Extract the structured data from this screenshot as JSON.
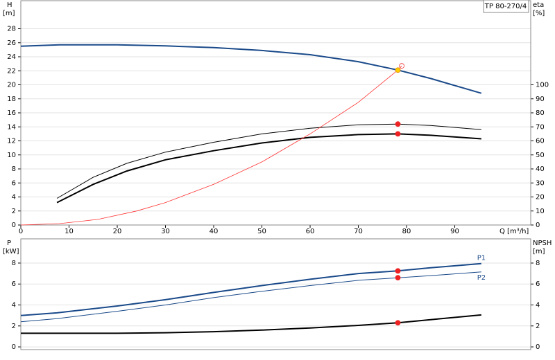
{
  "chart_data": [
    {
      "type": "line",
      "annotation": "TP 80-270/4",
      "ylabel": "H",
      "yunit": "[m]",
      "y2label": "eta",
      "y2unit": "[%]",
      "xlabel": "Q [m³/h]",
      "xlim": [
        0,
        105.75
      ],
      "xticks": [
        0,
        10,
        20,
        30,
        40,
        50,
        60,
        70,
        80,
        90
      ],
      "ylim": [
        0,
        32
      ],
      "yticks": [
        0,
        2,
        4,
        6,
        8,
        10,
        12,
        14,
        16,
        18,
        20,
        22,
        24,
        26,
        28
      ],
      "y2lim": [
        0,
        160
      ],
      "y2ticks": [
        0,
        10,
        20,
        30,
        40,
        50,
        60,
        70,
        80,
        90,
        100
      ],
      "grid": true,
      "series": [
        {
          "color": "#1a4a8a",
          "line_width": 2,
          "axis": "y",
          "x": [
            0,
            8,
            20,
            30,
            40,
            50,
            60,
            70,
            78.2,
            85,
            95.5
          ],
          "values": [
            25.5,
            25.7,
            25.7,
            25.55,
            25.3,
            24.9,
            24.3,
            23.3,
            22.1,
            20.9,
            18.8
          ]
        },
        {
          "color": "#000000",
          "line_width": 1,
          "axis": "y2",
          "x": [
            7.5,
            15,
            22,
            30,
            40,
            50,
            60,
            70,
            78.2,
            85,
            95.5
          ],
          "values": [
            19,
            34,
            44,
            52,
            59,
            65,
            69,
            71.5,
            72,
            71,
            68
          ]
        },
        {
          "color": "#000000",
          "line_width": 2,
          "axis": "y2",
          "x": [
            7.5,
            15,
            22,
            30,
            40,
            50,
            60,
            70,
            78.2,
            85,
            95.5
          ],
          "values": [
            16,
            29,
            38.5,
            46.5,
            53,
            58.5,
            62.5,
            64.5,
            65,
            64,
            61.5
          ]
        },
        {
          "color": "#ff3333",
          "line_width": 0.8,
          "axis": "y",
          "x": [
            0,
            8,
            16,
            24,
            30,
            40,
            50,
            60,
            70,
            78.2,
            79
          ],
          "values": [
            0,
            0.2,
            0.8,
            2,
            3.2,
            5.8,
            9,
            13,
            17.5,
            22.1,
            22.7
          ]
        }
      ],
      "markers": [
        {
          "x": 78.2,
          "y": 22.1,
          "axis": "y",
          "color": "#ffcc00"
        },
        {
          "x": 79,
          "y": 22.7,
          "axis": "y",
          "color": "none"
        },
        {
          "x": 78.2,
          "y": 72,
          "axis": "y2",
          "color": "#ee2222"
        },
        {
          "x": 78.2,
          "y": 65,
          "axis": "y2",
          "color": "#ee2222"
        }
      ]
    },
    {
      "type": "line",
      "ylabel": "P",
      "yunit": "[kW]",
      "y2label": "NPSH",
      "y2unit": "[m]",
      "xlim": [
        0,
        105.75
      ],
      "ylim": [
        -0.26,
        10.31
      ],
      "yticks": [
        0,
        2,
        4,
        6,
        8
      ],
      "y2lim": [
        -0.26,
        10.31
      ],
      "y2ticks": [
        0,
        2,
        4,
        6,
        8
      ],
      "grid": true,
      "series": [
        {
          "name": "P1",
          "color": "#1a4a8a",
          "line_width": 2,
          "axis": "y",
          "x": [
            0,
            7.5,
            20,
            30,
            40,
            50,
            60,
            70,
            78.2,
            85,
            95.5
          ],
          "values": [
            3.0,
            3.25,
            3.9,
            4.5,
            5.2,
            5.85,
            6.45,
            7.0,
            7.25,
            7.55,
            7.95
          ]
        },
        {
          "name": "P2",
          "color": "#1a4a8a",
          "line_width": 1,
          "axis": "y",
          "x": [
            0,
            7.5,
            20,
            30,
            40,
            50,
            60,
            70,
            78.2,
            85,
            95.5
          ],
          "values": [
            2.4,
            2.7,
            3.4,
            4.0,
            4.7,
            5.3,
            5.85,
            6.35,
            6.6,
            6.8,
            7.15
          ]
        },
        {
          "color": "#000000",
          "line_width": 2,
          "axis": "y2",
          "x": [
            0,
            7.5,
            20,
            30,
            40,
            50,
            60,
            70,
            78.2,
            85,
            95.5
          ],
          "values": [
            1.3,
            1.3,
            1.3,
            1.35,
            1.45,
            1.6,
            1.8,
            2.05,
            2.3,
            2.6,
            3.05
          ]
        }
      ],
      "markers": [
        {
          "x": 78.2,
          "y": 7.25,
          "axis": "y",
          "color": "#ee2222"
        },
        {
          "x": 78.2,
          "y": 6.6,
          "axis": "y",
          "color": "#ee2222"
        },
        {
          "x": 78.2,
          "y": 2.3,
          "axis": "y2",
          "color": "#ee2222"
        }
      ]
    }
  ]
}
